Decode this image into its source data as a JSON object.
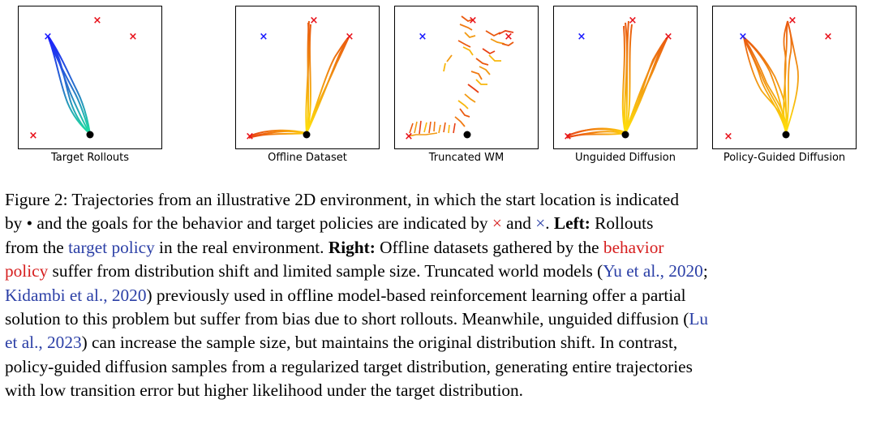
{
  "panels": [
    {
      "name": "target-rollouts",
      "label": "Target Rollouts",
      "color": "#1833ee"
    },
    {
      "name": "offline-dataset",
      "label": "Offline Dataset"
    },
    {
      "name": "truncated-wm",
      "label": "Truncated WM"
    },
    {
      "name": "unguided-diffusion",
      "label": "Unguided Diffusion"
    },
    {
      "name": "policy-guided-diffusion",
      "label": "Policy-Guided Diffusion"
    }
  ],
  "colors": {
    "blue_goal": "#1a1aff",
    "red_goal": "#e8111a",
    "start": "#000000",
    "link": "#2b3fa6",
    "behavior": "#d61e1e"
  },
  "caption": {
    "l1": "Figure 2: Trajectories from an illustrative 2D environment, in which the start location is indicated",
    "l2a": "by ",
    "l2_dot": "•",
    "l2b": " and the goals for the behavior and target policies are indicated by ",
    "l2_x1": "×",
    "l2c": " and ",
    "l2_x2": "×",
    "l2d": ". ",
    "l2_left": "Left:",
    "l2e": " Rollouts",
    "l3a": "from the ",
    "l3_target": "target policy",
    "l3b": " in the real environment. ",
    "l3_right": "Right:",
    "l3c": " Offline datasets gathered by the ",
    "l3_behavior": "behavior",
    "l4_policy": "policy",
    "l4a": " suffer from distribution shift and limited sample size. Truncated world models (",
    "l4_ref": "Yu et al., 2020",
    "l4b": ";",
    "l5_ref": "Kidambi et al., 2020",
    "l5a": ") previously used in offline model-based reinforcement learning offer a partial",
    "l6a": "solution to this problem but suffer from bias due to short rollouts. Meanwhile, unguided diffusion (",
    "l6_ref": "Lu",
    "l7_ref": "et al., 2023",
    "l7a": ") can increase the sample size, but maintains the original distribution shift. In contrast,",
    "l8": "policy-guided diffusion samples from a regularized target distribution, generating entire trajectories",
    "l9": "with low transition error but higher likelihood under the target distribution."
  }
}
